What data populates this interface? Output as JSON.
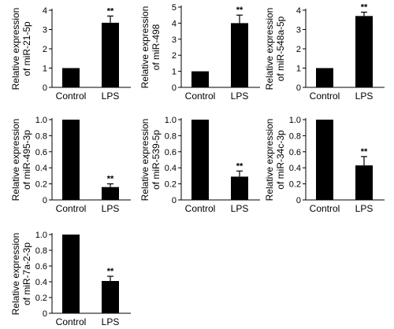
{
  "chart_data": [
    {
      "type": "bar",
      "ylabel": [
        "Relative expression",
        "of miR-21-5p"
      ],
      "categories": [
        "Control",
        "LPS"
      ],
      "values": [
        1,
        3.35
      ],
      "errors": [
        0,
        0.35
      ],
      "significance": [
        "",
        "**"
      ],
      "ylim": [
        0,
        4
      ],
      "yticks": [
        "0",
        "1",
        "2",
        "3",
        "4"
      ],
      "tick_values": [
        0,
        1,
        2,
        3,
        4
      ]
    },
    {
      "type": "bar",
      "ylabel": [
        "Relative expression",
        "of miR-498"
      ],
      "categories": [
        "Control",
        "LPS"
      ],
      "values": [
        1,
        4.0
      ],
      "errors": [
        0,
        0.5
      ],
      "significance": [
        "",
        "**"
      ],
      "ylim": [
        0,
        5
      ],
      "yticks": [
        "0",
        "1",
        "2",
        "3",
        "4",
        "5"
      ],
      "tick_values": [
        0,
        1,
        2,
        3,
        4,
        5
      ]
    },
    {
      "type": "bar",
      "ylabel": [
        "Relative expression",
        "of miR-548a-5p"
      ],
      "categories": [
        "Control",
        "LPS"
      ],
      "values": [
        1,
        3.7
      ],
      "errors": [
        0,
        0.2
      ],
      "significance": [
        "",
        "**"
      ],
      "ylim": [
        0,
        4
      ],
      "yticks": [
        "0",
        "1",
        "2",
        "3",
        "4"
      ],
      "tick_values": [
        0,
        1,
        2,
        3,
        4
      ]
    },
    {
      "type": "bar",
      "ylabel": [
        "Relative expression",
        "of miR-495-3p"
      ],
      "categories": [
        "Control",
        "LPS"
      ],
      "values": [
        1,
        0.16
      ],
      "errors": [
        0,
        0.04
      ],
      "significance": [
        "",
        "**"
      ],
      "ylim": [
        0,
        1.0
      ],
      "yticks": [
        "0",
        "0.2",
        "0.4",
        "0.6",
        "0.8",
        "1.0"
      ],
      "tick_values": [
        0,
        0.2,
        0.4,
        0.6,
        0.8,
        1.0
      ]
    },
    {
      "type": "bar",
      "ylabel": [
        "Relative expression",
        "of miR-539-5p"
      ],
      "categories": [
        "Control",
        "LPS"
      ],
      "values": [
        1,
        0.29
      ],
      "errors": [
        0,
        0.07
      ],
      "significance": [
        "",
        "**"
      ],
      "ylim": [
        0,
        1.0
      ],
      "yticks": [
        "0",
        "0.2",
        "0.4",
        "0.6",
        "0.8",
        "1.0"
      ],
      "tick_values": [
        0,
        0.2,
        0.4,
        0.6,
        0.8,
        1.0
      ]
    },
    {
      "type": "bar",
      "ylabel": [
        "Relative expression",
        "of miR-34c-3p"
      ],
      "categories": [
        "Control",
        "LPS"
      ],
      "values": [
        1,
        0.43
      ],
      "errors": [
        0,
        0.11
      ],
      "significance": [
        "",
        "**"
      ],
      "ylim": [
        0,
        1.0
      ],
      "yticks": [
        "0",
        "0.2",
        "0.4",
        "0.6",
        "0.8",
        "1.0"
      ],
      "tick_values": [
        0,
        0.2,
        0.4,
        0.6,
        0.8,
        1.0
      ]
    },
    {
      "type": "bar",
      "ylabel": [
        "Relative expression",
        "of miR-7a-2-3p"
      ],
      "categories": [
        "Control",
        "LPS"
      ],
      "values": [
        1,
        0.41
      ],
      "errors": [
        0,
        0.06
      ],
      "significance": [
        "",
        "**"
      ],
      "ylim": [
        0,
        1.0
      ],
      "yticks": [
        "0",
        "0.2",
        "0.4",
        "0.6",
        "0.8",
        "1.0"
      ],
      "tick_values": [
        0,
        0.2,
        0.4,
        0.6,
        0.8,
        1.0
      ]
    }
  ],
  "colors": {
    "bar": "#000000",
    "axis": "#000000"
  }
}
